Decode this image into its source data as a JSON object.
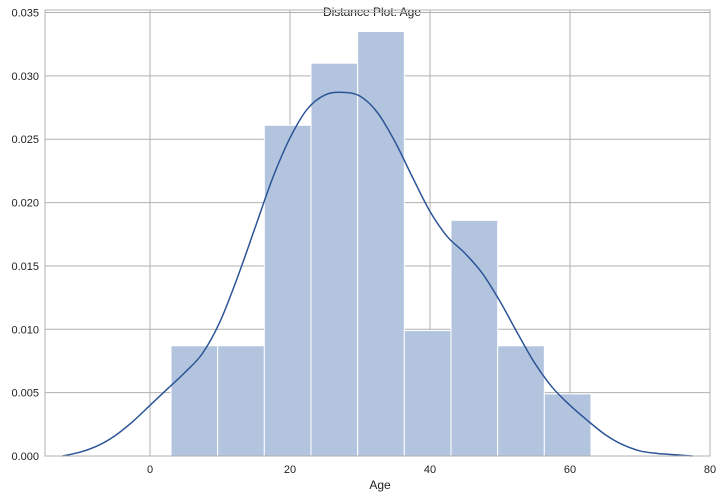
{
  "chart_data": {
    "type": "bar",
    "title": "Distance Plot: Age",
    "xlabel": "Age",
    "ylabel": "",
    "xlim": [
      -15,
      80
    ],
    "ylim": [
      0,
      0.0352
    ],
    "x_ticks": [
      0,
      20,
      40,
      60,
      80
    ],
    "y_ticks": [
      0.0,
      0.005,
      0.01,
      0.015,
      0.02,
      0.025,
      0.03,
      0.035
    ],
    "y_tick_labels": [
      "0.000",
      "0.005",
      "0.010",
      "0.015",
      "0.020",
      "0.025",
      "0.030",
      "0.035"
    ],
    "grid": true,
    "histogram": {
      "bin_edges": [
        3,
        9.667,
        16.333,
        23,
        29.667,
        36.333,
        43,
        49.667,
        56.333,
        63
      ],
      "densities": [
        0.0087,
        0.0087,
        0.0261,
        0.031,
        0.0335,
        0.0099,
        0.0186,
        0.0087,
        0.0049
      ],
      "color": "#b3c4de"
    },
    "kde": {
      "color": "#2c5597",
      "points": [
        [
          -12.5,
          0.0
        ],
        [
          -10,
          0.0003
        ],
        [
          -7.5,
          0.0008
        ],
        [
          -5,
          0.0016
        ],
        [
          -2.5,
          0.0027
        ],
        [
          0,
          0.004
        ],
        [
          2.5,
          0.0053
        ],
        [
          5,
          0.0066
        ],
        [
          7.5,
          0.0081
        ],
        [
          10,
          0.0106
        ],
        [
          12.5,
          0.0141
        ],
        [
          15,
          0.018
        ],
        [
          17.5,
          0.0219
        ],
        [
          20,
          0.0251
        ],
        [
          22.5,
          0.0274
        ],
        [
          25,
          0.0285
        ],
        [
          27.5,
          0.0287
        ],
        [
          30,
          0.0284
        ],
        [
          32.5,
          0.0271
        ],
        [
          35,
          0.0248
        ],
        [
          37.5,
          0.022
        ],
        [
          40,
          0.0193
        ],
        [
          42.5,
          0.0173
        ],
        [
          45,
          0.016
        ],
        [
          47.5,
          0.0144
        ],
        [
          50,
          0.0122
        ],
        [
          52.5,
          0.0097
        ],
        [
          55,
          0.0073
        ],
        [
          57.5,
          0.0054
        ],
        [
          60,
          0.004
        ],
        [
          62.5,
          0.0028
        ],
        [
          65,
          0.0017
        ],
        [
          67.5,
          0.0009
        ],
        [
          70,
          0.0004
        ],
        [
          72.5,
          0.0002
        ],
        [
          75,
          0.0001
        ],
        [
          77.5,
          0.0
        ]
      ]
    }
  }
}
